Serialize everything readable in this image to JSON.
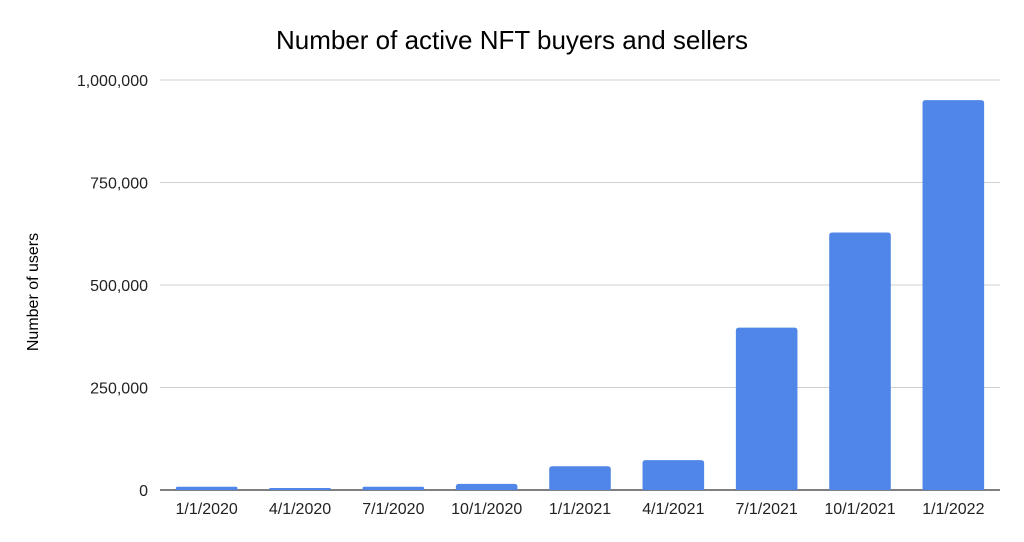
{
  "chart_data": {
    "type": "bar",
    "title": "Number of active NFT buyers and sellers",
    "xlabel": "",
    "ylabel": "Number of users",
    "categories": [
      "1/1/2020",
      "4/1/2020",
      "7/1/2020",
      "10/1/2020",
      "1/1/2021",
      "4/1/2021",
      "7/1/2021",
      "10/1/2021",
      "1/1/2022"
    ],
    "values": [
      8000,
      5000,
      8000,
      15000,
      58000,
      73000,
      396000,
      628000,
      951000
    ],
    "ylim": [
      0,
      1000000
    ],
    "yticks": [
      0,
      250000,
      500000,
      750000,
      1000000
    ],
    "ytick_labels": [
      "0",
      "250,000",
      "500,000",
      "750,000",
      "1,000,000"
    ],
    "grid": true,
    "legend": "none",
    "bar_color": "#4f86e8"
  }
}
